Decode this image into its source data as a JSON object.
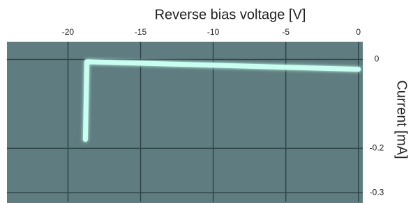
{
  "chart_data": {
    "type": "line",
    "x_label": "Reverse bias voltage [V]",
    "y_label": "Current [mA]",
    "x": [
      0,
      -18.7,
      -18.8
    ],
    "series": [
      {
        "values": [
          -0.022,
          -0.005,
          -0.18
        ],
        "color": "#c8fff0"
      }
    ],
    "xlim": [
      -24.2,
      0.3
    ],
    "xticks": [
      -20,
      -15,
      -10,
      -5,
      0
    ],
    "ylim": [
      0.04,
      -0.32
    ],
    "yticks": [
      0,
      -0.2,
      -0.3
    ],
    "grid": true
  }
}
